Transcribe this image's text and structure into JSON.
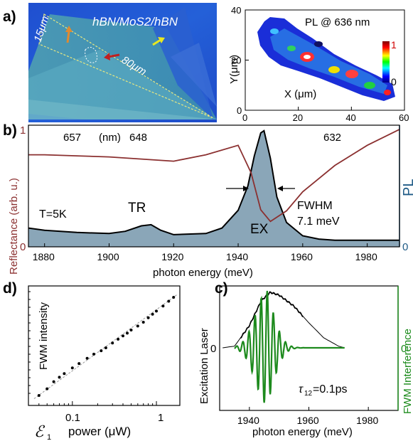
{
  "panel_a": {
    "label": "a)",
    "photo": {
      "title": "hBN/MoS2/hBN",
      "scale_15": "15μm",
      "scale_80": "80μm"
    },
    "pl_map": {
      "title": "PL @ 636 nm",
      "xlabel": "X (μm)",
      "ylabel": "Y(μm)",
      "x_ticks": [
        "0",
        "20",
        "40",
        "60"
      ],
      "y_ticks": [
        "0",
        "20",
        "40"
      ],
      "cbar_max": "1",
      "cbar_min": "0"
    }
  },
  "panel_b": {
    "label": "b)",
    "ylabel_left": "Reflectance (arb. u.)",
    "ylabel_right": "PL",
    "xlabel": "photon energy (meV)",
    "x_ticks": [
      "1880",
      "1900",
      "1920",
      "1940",
      "1960",
      "1980"
    ],
    "top_labels": [
      "657",
      "(nm)",
      "648",
      "632"
    ],
    "left_ticks": [
      "1",
      "0"
    ],
    "right_ticks": [
      "0"
    ],
    "annotations": {
      "temp": "T=5K",
      "tr": "TR",
      "ex": "EX",
      "fwhm": "FWHM",
      "fwhm_val": "7.1 meV"
    }
  },
  "panel_d": {
    "label": "d)",
    "ylabel": "FWM intensity",
    "xlabel": "power (μW)",
    "x_symbol": "ℰ",
    "x_symbol_sub": "1",
    "x_ticks": [
      "0.1",
      "1"
    ]
  },
  "panel_c": {
    "label": "c)",
    "ylabel_left": "Excitation Laser",
    "ylabel_right": "FWM Interference",
    "xlabel": "photon energy (meV)",
    "x_ticks": [
      "1940",
      "1960",
      "1980"
    ],
    "left_tick": "0",
    "right_tick": "0",
    "tau": "τ",
    "tau_sub": "12",
    "tau_val": "=0.1ps"
  },
  "colors": {
    "reflectance": "#8b3030",
    "pl_fill": "#8aa6b8",
    "pl_axis": "#1f5b86",
    "fwm_green": "#1d8a1d",
    "fwm_axis": "#1a8a1a"
  },
  "chart_data": [
    {
      "type": "line",
      "panel": "b",
      "xlim": [
        1875,
        1990
      ],
      "series": [
        {
          "x": [
            1875,
            1880,
            1890,
            1900,
            1910,
            1920,
            1930,
            1940,
            1944,
            1947,
            1950,
            1955,
            1960,
            1970,
            1980,
            1990
          ],
          "y": [
            0.87,
            0.87,
            0.86,
            0.85,
            0.83,
            0.81,
            0.87,
            0.96,
            0.7,
            0.35,
            0.24,
            0.34,
            0.52,
            0.77,
            0.96,
            1.11
          ]
        },
        {
          "x": [
            1875,
            1880,
            1890,
            1900,
            1905,
            1910,
            1913,
            1916,
            1920,
            1930,
            1935,
            1940,
            1943,
            1945,
            1947,
            1948,
            1950,
            1952,
            1955,
            1960,
            1965,
            1970,
            1980,
            1990
          ],
          "y": [
            0.17,
            0.15,
            0.13,
            0.12,
            0.14,
            0.19,
            0.2,
            0.15,
            0.11,
            0.12,
            0.17,
            0.33,
            0.55,
            0.82,
            1.03,
            1.05,
            0.8,
            0.45,
            0.22,
            0.1,
            0.07,
            0.06,
            0.06,
            0.06
          ]
        }
      ]
    },
    {
      "type": "scatter",
      "panel": "d",
      "xlim": [
        0.03,
        1.9
      ],
      "log_x": true,
      "log_y": true,
      "series": [
        {
          "x": [
            0.04,
            0.05,
            0.06,
            0.07,
            0.08,
            0.1,
            0.12,
            0.15,
            0.18,
            0.22,
            0.25,
            0.3,
            0.35,
            0.4,
            0.45,
            0.5,
            0.6,
            0.7,
            0.8,
            0.9,
            1.0,
            1.2,
            1.4,
            1.6
          ],
          "y": [
            1,
            1.4,
            2.0,
            2.5,
            3.0,
            4.0,
            5.0,
            6.5,
            8.0,
            9.5,
            11,
            14,
            17,
            20,
            23,
            27,
            33,
            40,
            50,
            60,
            70,
            90,
            115,
            140
          ]
        }
      ]
    },
    {
      "type": "line",
      "panel": "c",
      "xlim": [
        1930,
        1990
      ],
      "series": [
        {
          "x": [
            1931,
            1935,
            1940,
            1944,
            1947,
            1950,
            1955,
            1960,
            1965,
            1970,
            1972
          ],
          "y": [
            0,
            0.03,
            0.4,
            0.85,
            1.0,
            0.95,
            0.75,
            0.45,
            0.18,
            0.03,
            0
          ]
        }
      ]
    }
  ]
}
